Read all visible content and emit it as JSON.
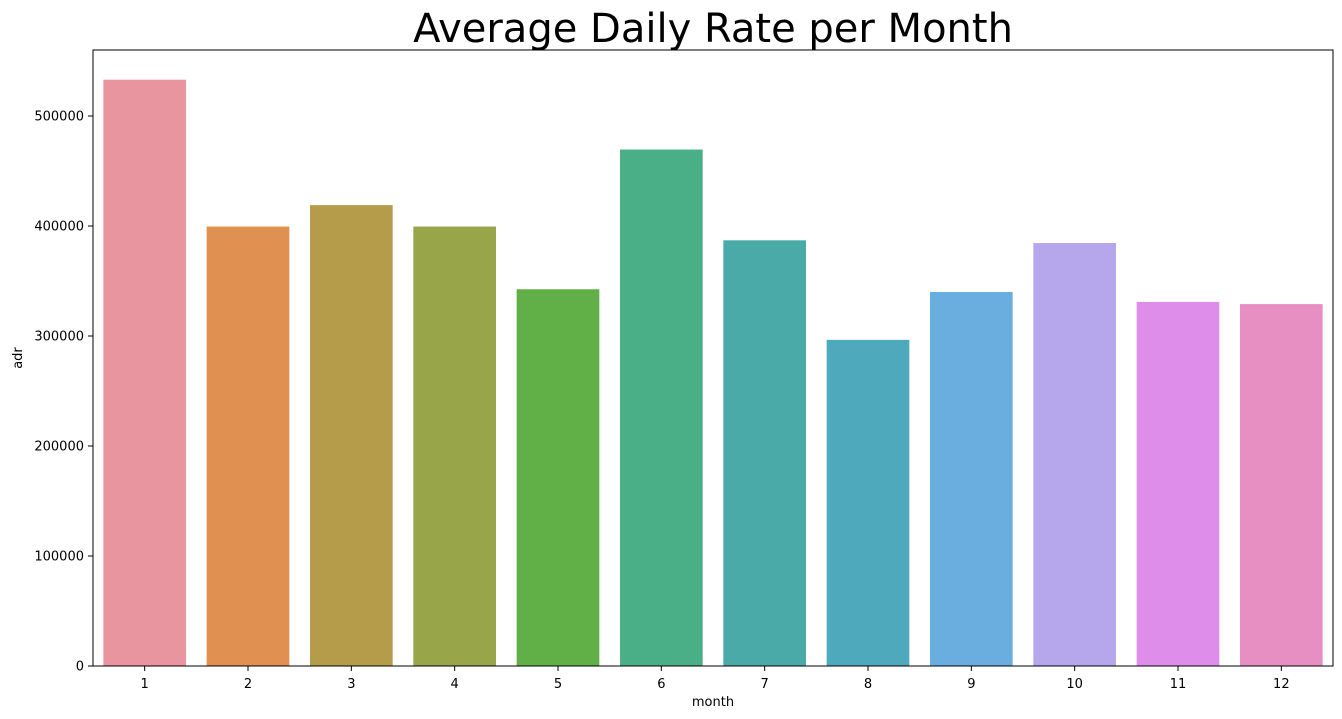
{
  "chart_data": {
    "type": "bar",
    "title": "Average Daily Rate per Month",
    "xlabel": "month",
    "ylabel": "adr",
    "categories": [
      "1",
      "2",
      "3",
      "4",
      "5",
      "6",
      "7",
      "8",
      "9",
      "10",
      "11",
      "12"
    ],
    "values": [
      533000,
      399500,
      419000,
      399500,
      342500,
      469500,
      387000,
      296500,
      340000,
      384500,
      331000,
      329000
    ],
    "colors": [
      "#e8959f",
      "#e09051",
      "#b59c4a",
      "#98a548",
      "#61af47",
      "#4aaf86",
      "#4aaaa8",
      "#4ea9bd",
      "#6aaddf",
      "#b6a6eb",
      "#de8dea",
      "#e78fc3"
    ],
    "ylim": [
      0,
      560000
    ],
    "yticks": [
      0,
      100000,
      200000,
      300000,
      400000,
      500000
    ],
    "ytick_labels": [
      "0",
      "100000",
      "200000",
      "300000",
      "400000",
      "500000"
    ],
    "grid": false,
    "legend": "none"
  }
}
